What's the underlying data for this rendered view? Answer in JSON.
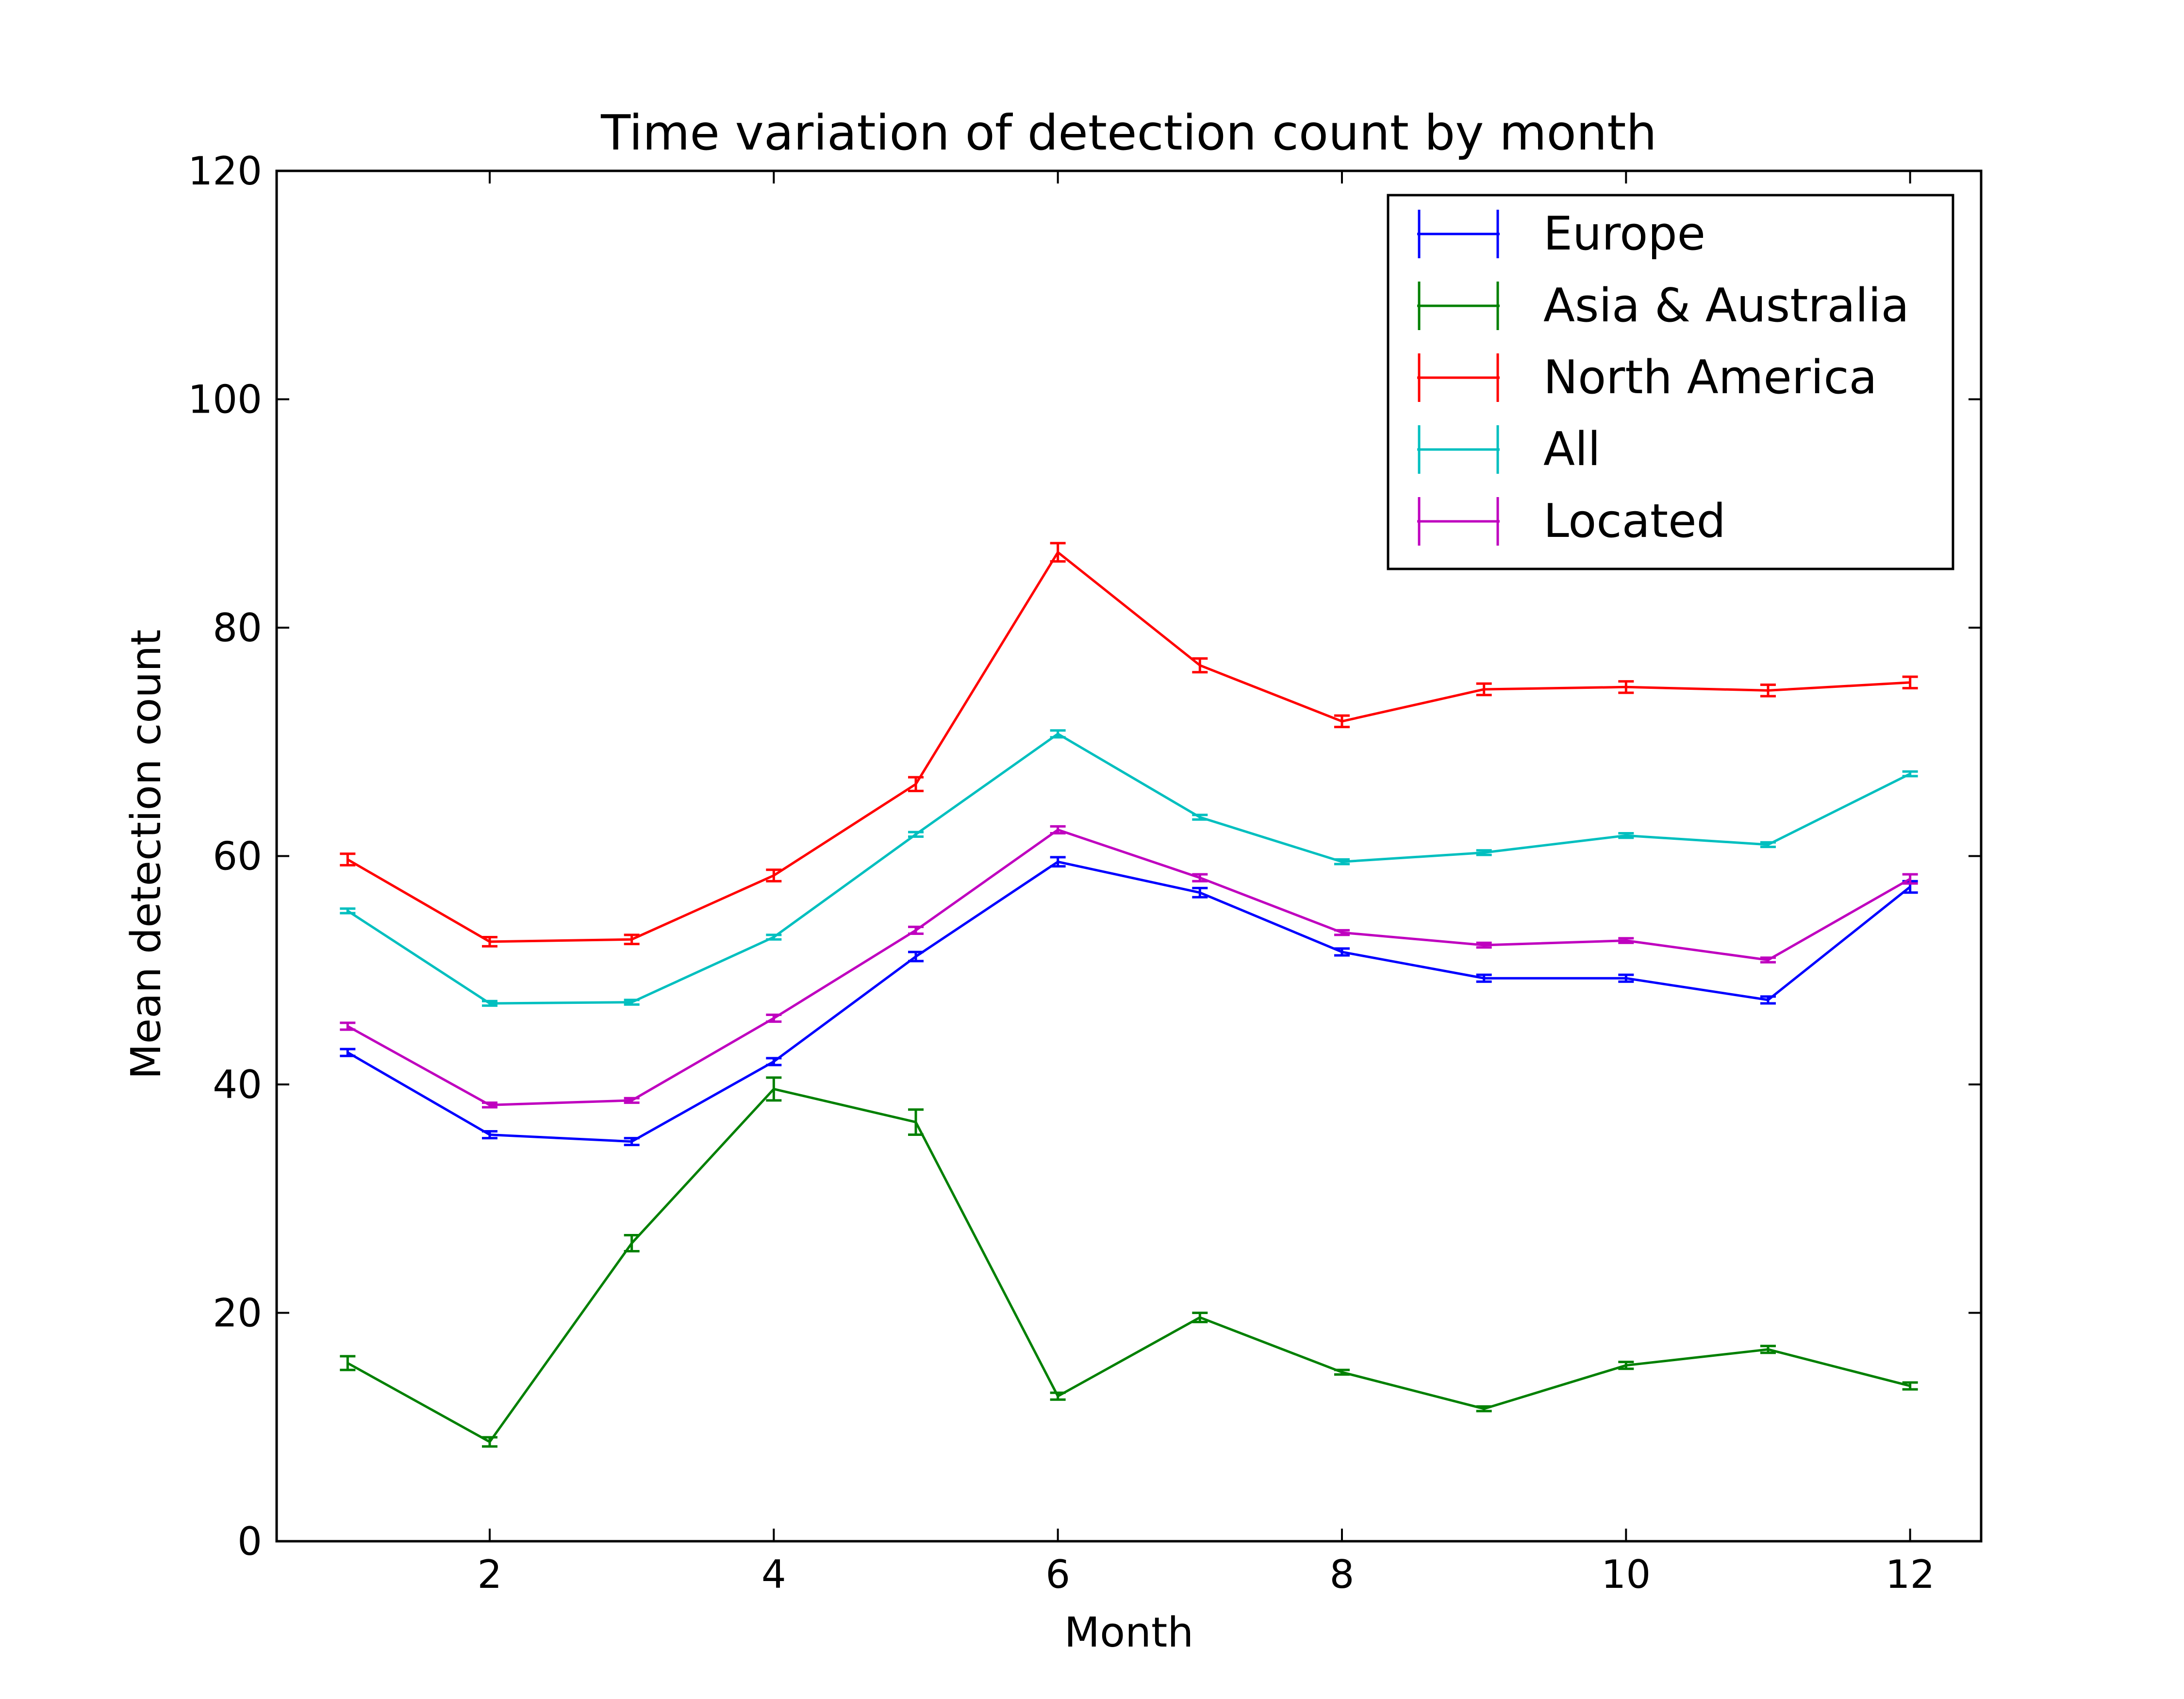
{
  "chart_data": {
    "type": "line",
    "title": "Time variation of detection count by month",
    "xlabel": "Month",
    "ylabel": "Mean detection count",
    "xlim": [
      0.5,
      12.5
    ],
    "ylim": [
      0,
      120
    ],
    "xticks": [
      2,
      4,
      6,
      8,
      10,
      12
    ],
    "yticks": [
      0,
      20,
      40,
      60,
      80,
      100,
      120
    ],
    "grid": false,
    "legend_position": "top-right",
    "error_bars": true,
    "x": [
      1,
      2,
      3,
      4,
      5,
      6,
      7,
      8,
      9,
      10,
      11,
      12
    ],
    "series": [
      {
        "name": "Europe",
        "color": "#0000ff",
        "values": [
          42.8,
          35.6,
          35.0,
          42.0,
          51.2,
          59.5,
          56.8,
          51.6,
          49.3,
          49.3,
          47.4,
          57.3
        ],
        "errors": [
          0.3,
          0.3,
          0.3,
          0.3,
          0.4,
          0.4,
          0.4,
          0.3,
          0.3,
          0.3,
          0.3,
          0.5
        ]
      },
      {
        "name": "Asia & Australia",
        "color": "#008000",
        "values": [
          15.6,
          8.7,
          26.1,
          39.6,
          36.7,
          12.7,
          19.6,
          14.8,
          11.6,
          15.4,
          16.8,
          13.6
        ],
        "errors": [
          0.6,
          0.4,
          0.7,
          1.0,
          1.1,
          0.3,
          0.4,
          0.2,
          0.2,
          0.3,
          0.3,
          0.3
        ]
      },
      {
        "name": "North America",
        "color": "#ff0000",
        "values": [
          59.7,
          52.5,
          52.7,
          58.3,
          66.3,
          86.6,
          76.7,
          71.8,
          74.6,
          74.8,
          74.5,
          75.2
        ],
        "errors": [
          0.5,
          0.4,
          0.4,
          0.5,
          0.6,
          0.8,
          0.6,
          0.5,
          0.5,
          0.5,
          0.5,
          0.5
        ]
      },
      {
        "name": "All",
        "color": "#00bfbf",
        "values": [
          55.2,
          47.1,
          47.2,
          52.9,
          61.9,
          70.7,
          63.4,
          59.5,
          60.3,
          61.8,
          61.0,
          67.2
        ],
        "errors": [
          0.2,
          0.2,
          0.2,
          0.2,
          0.2,
          0.3,
          0.2,
          0.2,
          0.2,
          0.2,
          0.2,
          0.2
        ]
      },
      {
        "name": "Located",
        "color": "#bf00bf",
        "values": [
          45.1,
          38.2,
          38.6,
          45.8,
          53.5,
          62.3,
          58.1,
          53.3,
          52.2,
          52.6,
          50.9,
          58.0
        ],
        "errors": [
          0.3,
          0.2,
          0.2,
          0.3,
          0.3,
          0.3,
          0.3,
          0.2,
          0.2,
          0.2,
          0.2,
          0.4
        ]
      }
    ]
  }
}
